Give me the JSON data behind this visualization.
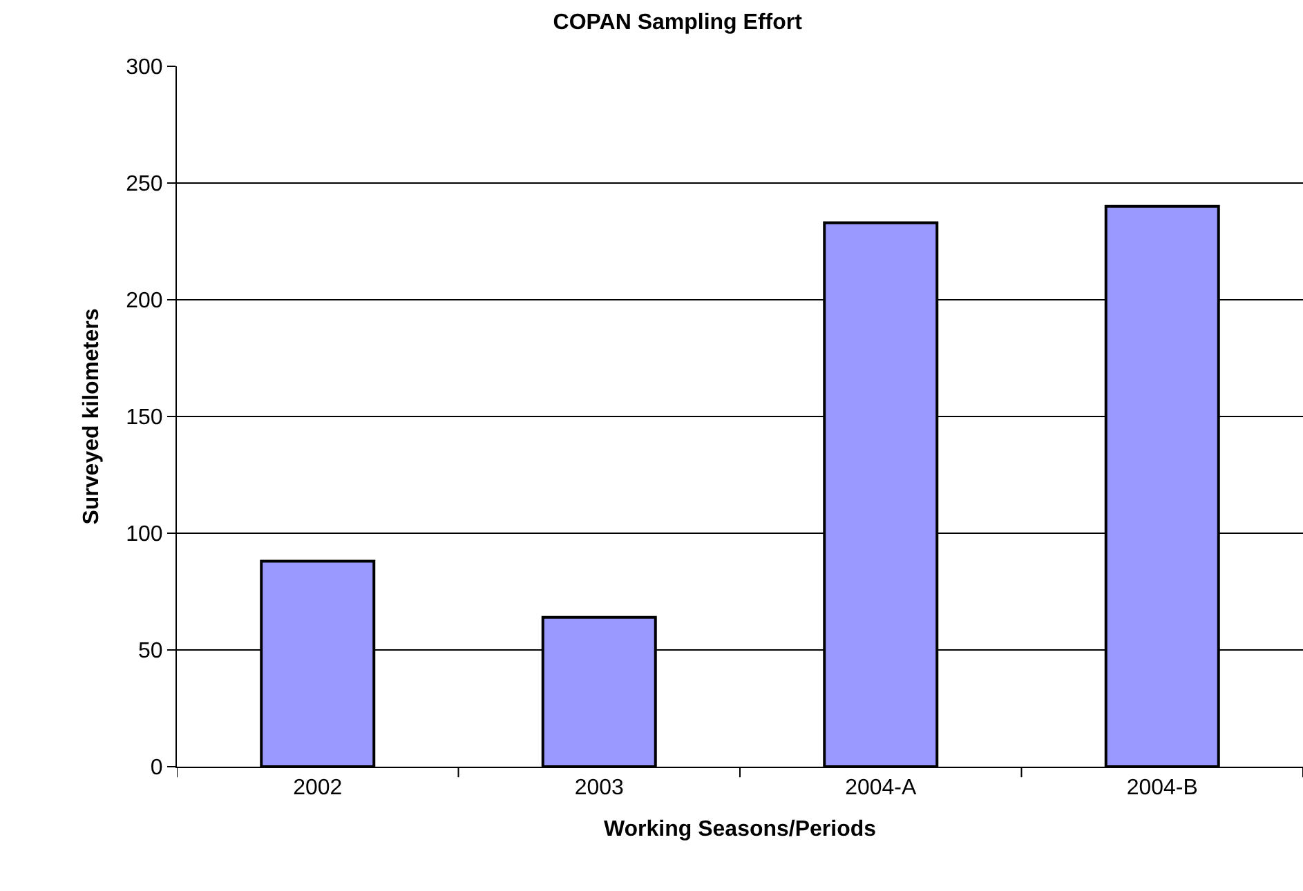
{
  "chart_data": {
    "type": "bar",
    "title": "COPAN Sampling Effort",
    "xlabel": "Working Seasons/Periods",
    "ylabel": "Surveyed kilometers",
    "categories": [
      "2002",
      "2003",
      "2004-A",
      "2004-B"
    ],
    "series": [
      {
        "color": "#9999ff",
        "values": [
          88,
          64,
          233,
          240
        ]
      }
    ],
    "ylim": [
      0,
      300
    ],
    "yticks": [
      0,
      50,
      100,
      150,
      200,
      250,
      300
    ],
    "grid": "y",
    "legend": false
  }
}
